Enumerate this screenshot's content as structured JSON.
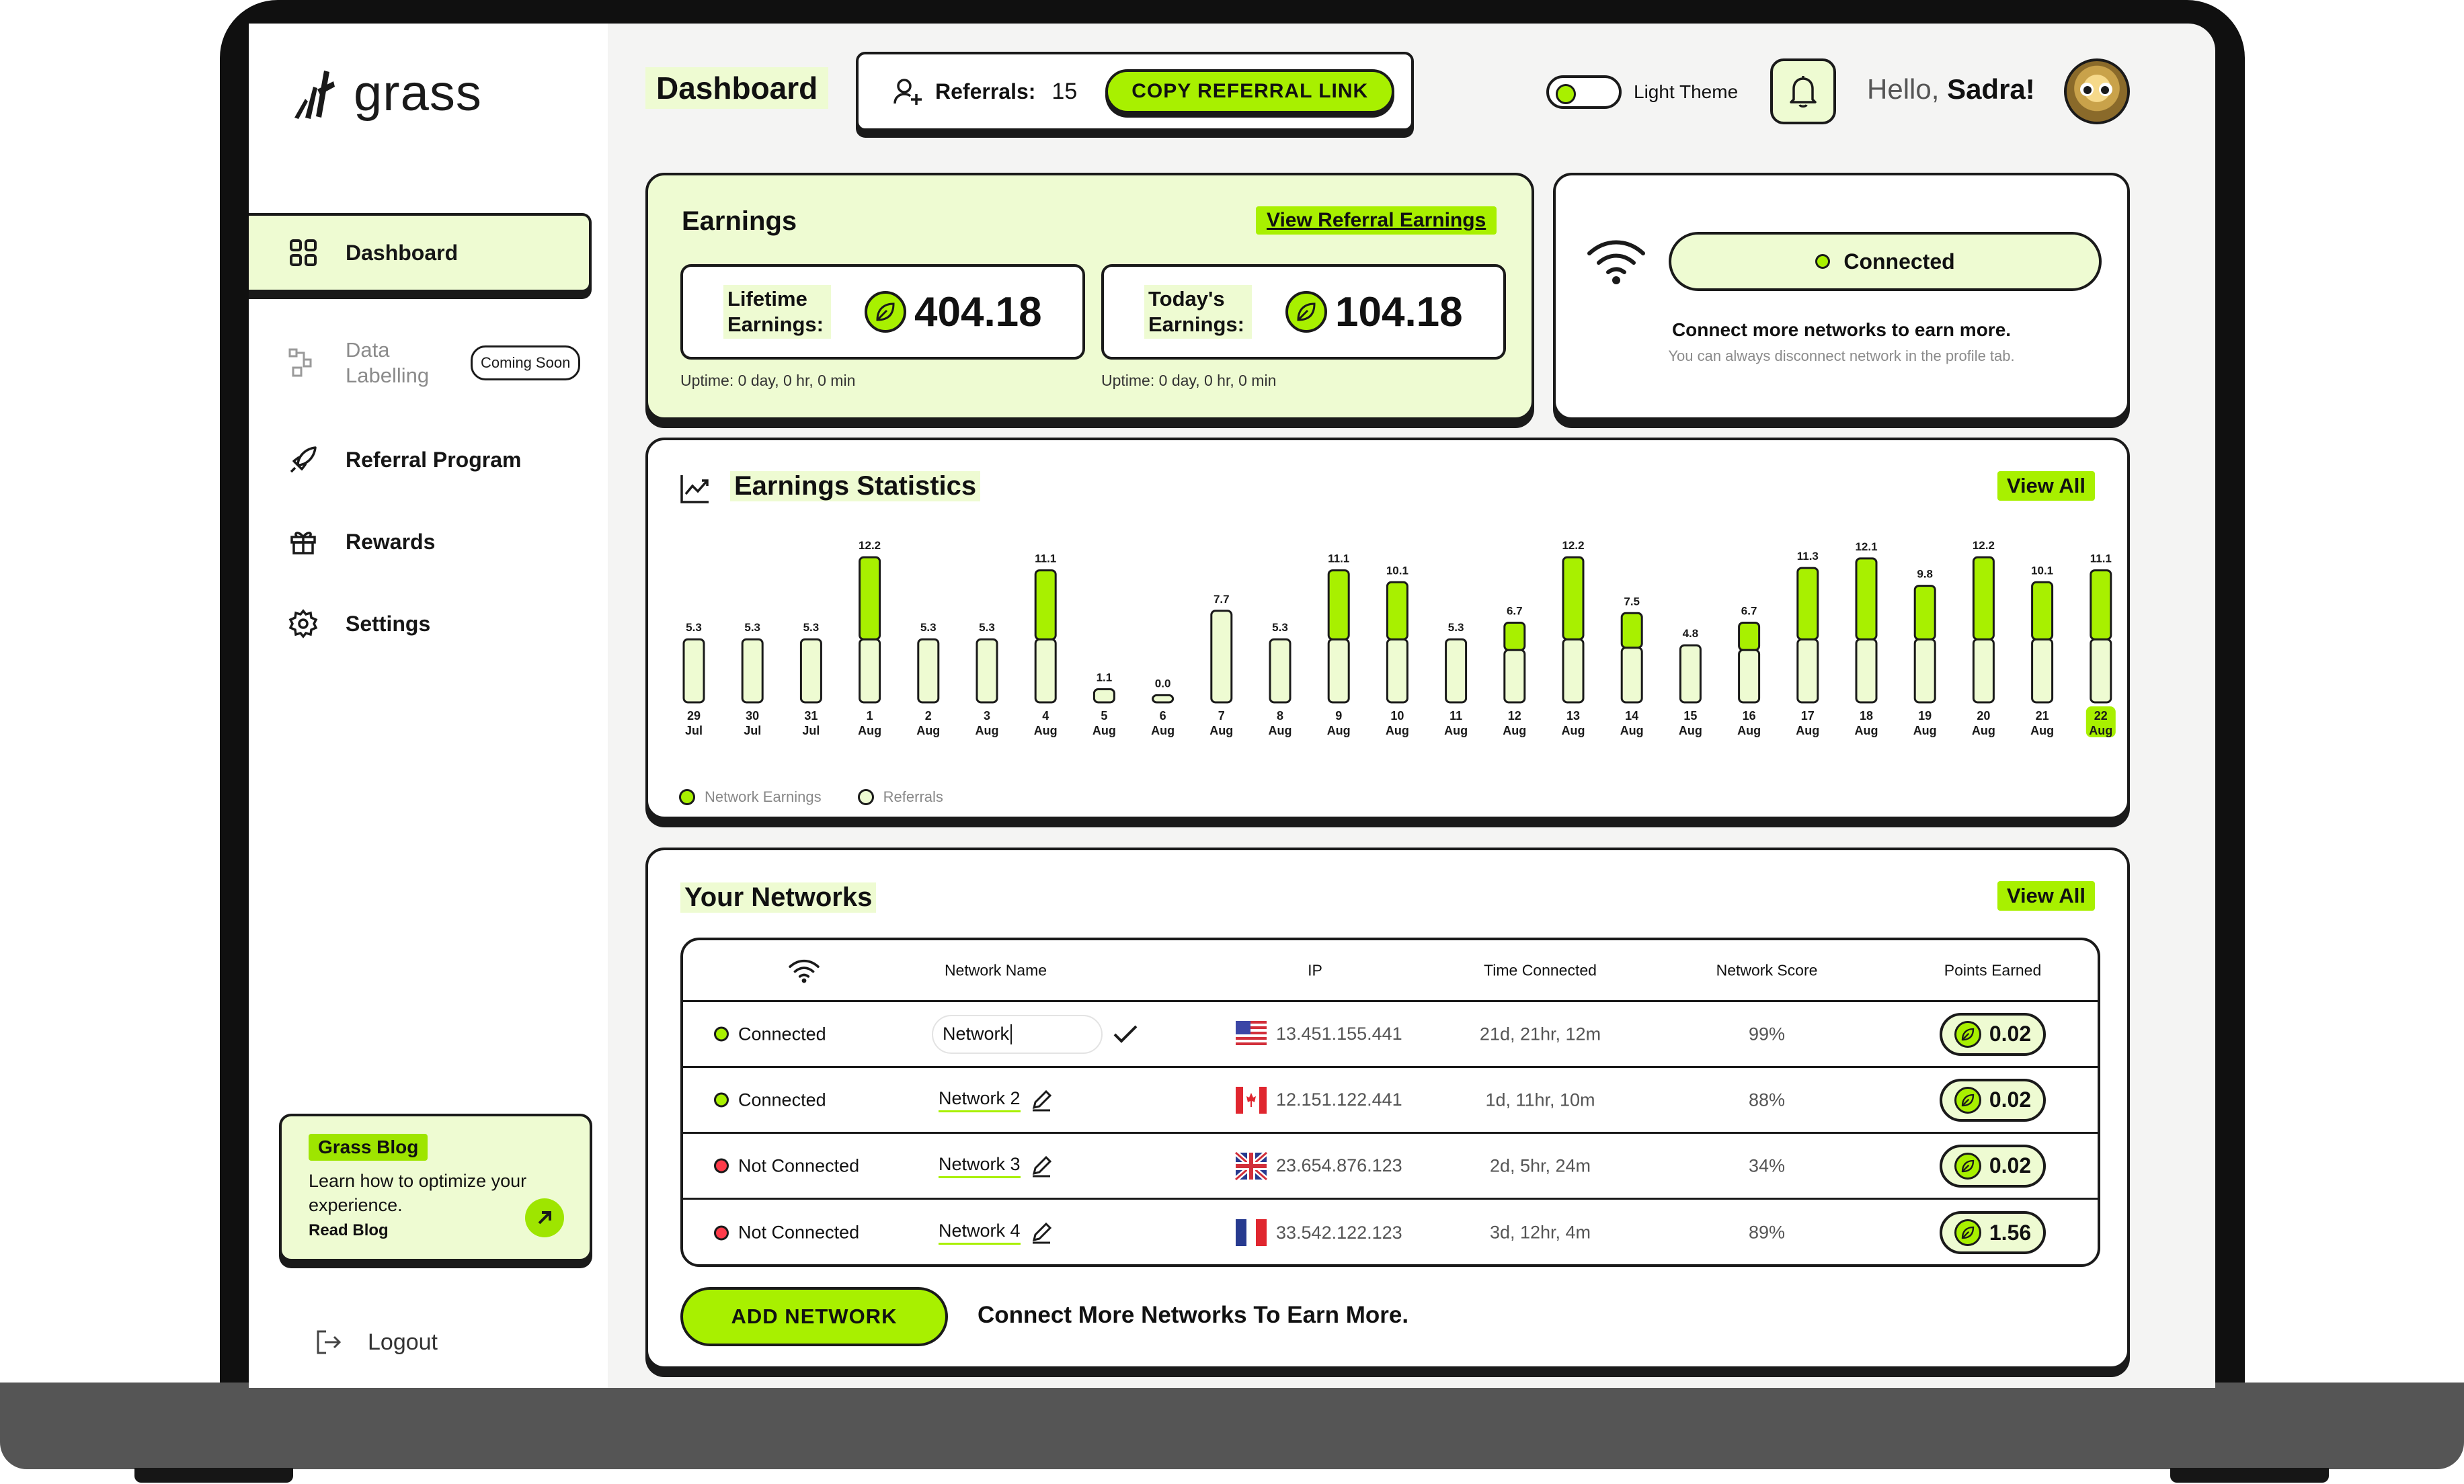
{
  "brand": {
    "name": "grass"
  },
  "sidebar": {
    "items": [
      {
        "label": "Dashboard",
        "icon": "grid-icon"
      },
      {
        "label": "Data\nLabelling",
        "icon": "data-icon",
        "badge": "Coming Soon"
      },
      {
        "label": "Referral Program",
        "icon": "rocket-icon"
      },
      {
        "label": "Rewards",
        "icon": "gift-icon"
      },
      {
        "label": "Settings",
        "icon": "gear-icon"
      }
    ],
    "blog": {
      "tag": "Grass Blog",
      "text": "Learn how to optimize your experience.",
      "link": "Read Blog"
    },
    "logout": "Logout"
  },
  "header": {
    "title": "Dashboard",
    "referrals_label": "Referrals:",
    "referrals_count": "15",
    "copy_button": "COPY REFERRAL LINK",
    "theme_label": "Light Theme",
    "greeting": "Hello,",
    "user": "Sadra!"
  },
  "earnings": {
    "title": "Earnings",
    "referral_link": "View Referral Earnings",
    "lifetime_label": "Lifetime Earnings:",
    "lifetime_value": "404.18",
    "today_label": "Today's Earnings:",
    "today_value": "104.18",
    "uptime_lifetime": "Uptime: 0 day, 0 hr, 0 min",
    "uptime_today": "Uptime: 0 day, 0 hr, 0 min"
  },
  "connection": {
    "status": "Connected",
    "message": "Connect more networks to earn more.",
    "sub": "You can always disconnect network in the profile tab."
  },
  "statistics": {
    "title": "Earnings Statistics",
    "view_all": "View All",
    "legend": [
      "Network Earnings",
      "Referrals"
    ]
  },
  "chart_data": {
    "type": "bar",
    "title": "Earnings Statistics",
    "categories": [
      "29 Jul",
      "30 Jul",
      "31 Jul",
      "1 Aug",
      "2 Aug",
      "3 Aug",
      "4 Aug",
      "5 Aug",
      "6 Aug",
      "7 Aug",
      "8 Aug",
      "9 Aug",
      "10 Aug",
      "11 Aug",
      "12 Aug",
      "13 Aug",
      "14 Aug",
      "15 Aug",
      "16 Aug",
      "17 Aug",
      "18 Aug",
      "19 Aug",
      "20 Aug",
      "21 Aug",
      "22 Aug"
    ],
    "day_labels": [
      "29",
      "30",
      "31",
      "1",
      "2",
      "3",
      "4",
      "5",
      "6",
      "7",
      "8",
      "9",
      "10",
      "11",
      "12",
      "13",
      "14",
      "15",
      "16",
      "17",
      "18",
      "19",
      "20",
      "21",
      "22"
    ],
    "month_labels": [
      "Jul",
      "Jul",
      "Jul",
      "Aug",
      "Aug",
      "Aug",
      "Aug",
      "Aug",
      "Aug",
      "Aug",
      "Aug",
      "Aug",
      "Aug",
      "Aug",
      "Aug",
      "Aug",
      "Aug",
      "Aug",
      "Aug",
      "Aug",
      "Aug",
      "Aug",
      "Aug",
      "Aug",
      "Aug"
    ],
    "values": [
      5.3,
      5.3,
      5.3,
      12.2,
      5.3,
      5.3,
      11.1,
      1.1,
      0.0,
      7.7,
      5.3,
      11.1,
      10.1,
      5.3,
      6.7,
      12.2,
      7.5,
      4.8,
      6.7,
      11.3,
      12.1,
      9.8,
      12.2,
      10.1,
      11.1
    ],
    "value_labels": [
      "5.3",
      "5.3",
      "5.3",
      "12.2",
      "5.3",
      "5.3",
      "11.1",
      "1.1",
      "0.0",
      "7.7",
      "5.3",
      "11.1",
      "10.1",
      "5.3",
      "6.7",
      "12.2",
      "7.5",
      "4.8",
      "6.7",
      "11.3",
      "12.1",
      "9.8",
      "12.2",
      "10.1",
      "11.1"
    ],
    "series": [
      {
        "name": "Network Earnings",
        "color": "#a8f000",
        "values": [
          0,
          0,
          0,
          6.9,
          0,
          0,
          5.8,
          0,
          0,
          0,
          0,
          5.8,
          4.8,
          0,
          2.3,
          6.9,
          2.9,
          0,
          2.3,
          6.0,
          6.8,
          4.5,
          6.9,
          4.8,
          5.8
        ]
      },
      {
        "name": "Referrals",
        "color": "#eefbd2",
        "values": [
          5.3,
          5.3,
          5.3,
          5.3,
          5.3,
          5.3,
          5.3,
          1.1,
          0.0,
          7.7,
          5.3,
          5.3,
          5.3,
          5.3,
          4.4,
          5.3,
          4.6,
          4.8,
          4.4,
          5.3,
          5.3,
          5.3,
          5.3,
          5.3,
          5.3
        ]
      }
    ],
    "highlight": "22 Aug",
    "ylim": [
      0,
      13
    ],
    "grid": false,
    "legend_position": "bottom-left"
  },
  "networks": {
    "title": "Your Networks",
    "view_all": "View All",
    "columns": [
      "Network Name",
      "IP",
      "Time Connected",
      "Network Score",
      "Points Earned"
    ],
    "rows": [
      {
        "status": "Connected",
        "name": "Network",
        "ip": "13.451.155.441",
        "time": "21d, 21hr, 12m",
        "score": "99%",
        "points": "0.02",
        "flag": "us"
      },
      {
        "status": "Connected",
        "name": "Network 2",
        "ip": "12.151.122.441",
        "time": "1d, 11hr, 10m",
        "score": "88%",
        "points": "0.02",
        "flag": "ca"
      },
      {
        "status": "Not Connected",
        "name": "Network 3",
        "ip": "23.654.876.123",
        "time": "2d, 5hr, 24m",
        "score": "34%",
        "points": "0.02",
        "flag": "uk"
      },
      {
        "status": "Not Connected",
        "name": "Network 4",
        "ip": "33.542.122.123",
        "time": "3d, 12hr, 4m",
        "score": "89%",
        "points": "1.56",
        "flag": "fr"
      }
    ],
    "add_button": "ADD NETWORK",
    "add_text": "Connect More Networks To Earn More."
  },
  "colors": {
    "accent": "#a8f000",
    "accent_light": "#eefbd2",
    "ink": "#1a1a1a",
    "danger": "#ff3b4a"
  }
}
